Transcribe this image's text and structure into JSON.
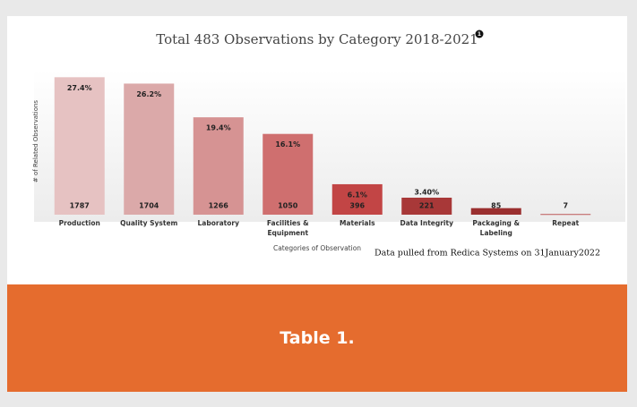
{
  "chart_data": {
    "type": "bar",
    "title": "Total 483 Observations by Category 2018-2021",
    "title_note": "1",
    "ylabel": "# of Related Observations",
    "xlabel": "Categories of Observation",
    "source_note": "Data pulled from Redica Systems on 31January2022",
    "categories": [
      "Production",
      "Quality System",
      "Laboratory",
      "Facilities & Equipment",
      "Materials",
      "Data Integrity",
      "Packaging & Labeling",
      "Repeat"
    ],
    "values": [
      1787,
      1704,
      1266,
      1050,
      396,
      221,
      85,
      7
    ],
    "percent_labels": [
      "27.4%",
      "26.2%",
      "19.4%",
      "16.1%",
      "6.1%",
      "3.40%",
      null,
      null
    ],
    "colors": [
      "#e6c2c2",
      "#dba9a9",
      "#d69393",
      "#cf6f6f",
      "#c24545",
      "#a83838",
      "#9a2f2f",
      "#b03434"
    ],
    "ylim": [
      0,
      2000
    ]
  },
  "footer": {
    "caption": "Table 1."
  }
}
